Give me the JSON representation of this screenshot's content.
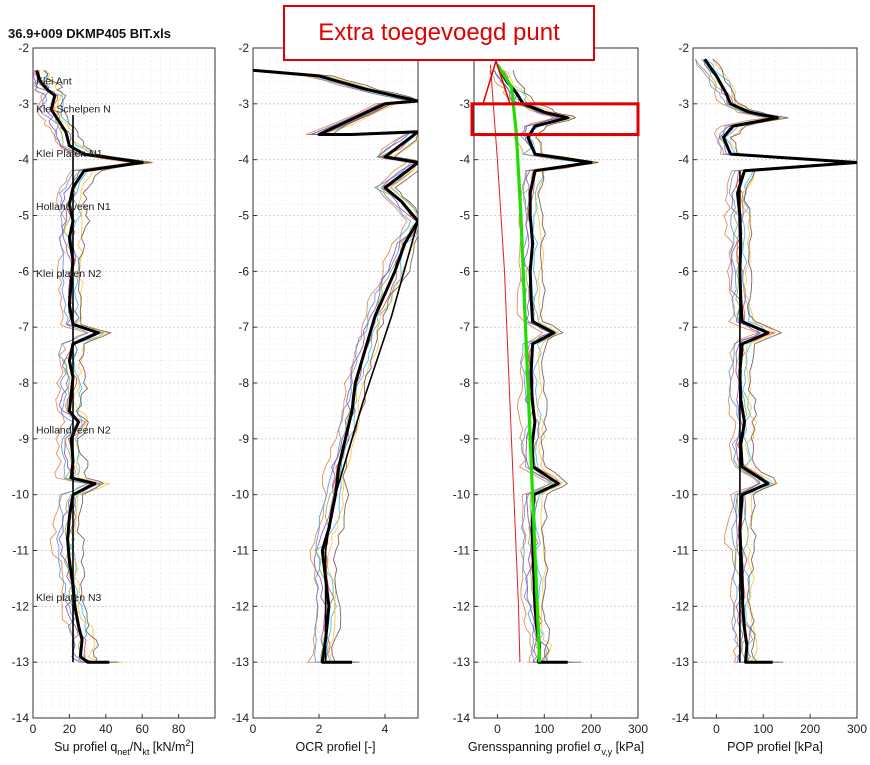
{
  "figure_title": "36.9+009 DKMP405 BIT.xls",
  "annotation": {
    "text": "Extra toegevoegd punt",
    "color": "#e00000"
  },
  "chart_data": [
    {
      "type": "line",
      "xlabel": "Su profiel q_net/N_kt [kN/m²]",
      "xlabel_parts": {
        "pre": "Su profiel q",
        "sub1": "net",
        "mid": "/N",
        "sub2": "kt",
        "post": " [kN/m",
        "sup": "2",
        "end": "]"
      },
      "xlim": [
        0,
        100
      ],
      "xticks": [
        0,
        20,
        40,
        60,
        80
      ],
      "ylim": [
        -14,
        -2
      ],
      "yticks": [
        -2,
        -3,
        -4,
        -5,
        -6,
        -7,
        -8,
        -9,
        -10,
        -11,
        -12,
        -13,
        -14
      ],
      "grid": true,
      "layer_labels": [
        {
          "text": "Klei Ant",
          "depth": -2.6
        },
        {
          "text": "Klei Schelpen N",
          "depth": -3.1
        },
        {
          "text": "Klei Platen N1",
          "depth": -3.9
        },
        {
          "text": "Hollandveen N1",
          "depth": -4.85
        },
        {
          "text": "Klei platen N2",
          "depth": -6.05
        },
        {
          "text": "Hollandveen N2",
          "depth": -8.85
        },
        {
          "text": "Klei platen N3",
          "depth": -11.85
        }
      ],
      "series": [
        {
          "role": "mean",
          "color": "#000000",
          "points": [
            [
              2,
              -2.4
            ],
            [
              4,
              -2.6
            ],
            [
              8,
              -2.75
            ],
            [
              12,
              -2.85
            ],
            [
              10,
              -3.1
            ],
            [
              14,
              -3.3
            ],
            [
              18,
              -3.5
            ],
            [
              20,
              -3.75
            ],
            [
              28,
              -3.9
            ],
            [
              60,
              -4.05
            ],
            [
              28,
              -4.2
            ],
            [
              22,
              -4.5
            ],
            [
              20,
              -4.8
            ],
            [
              22,
              -5.1
            ],
            [
              20,
              -5.4
            ],
            [
              22,
              -5.8
            ],
            [
              21,
              -6.2
            ],
            [
              20,
              -6.6
            ],
            [
              22,
              -6.95
            ],
            [
              36,
              -7.1
            ],
            [
              22,
              -7.3
            ],
            [
              20,
              -7.6
            ],
            [
              22,
              -7.9
            ],
            [
              21,
              -8.2
            ],
            [
              20,
              -8.5
            ],
            [
              25,
              -8.7
            ],
            [
              21,
              -9.0
            ],
            [
              22,
              -9.4
            ],
            [
              21,
              -9.7
            ],
            [
              34,
              -9.8
            ],
            [
              22,
              -10.0
            ],
            [
              20,
              -10.4
            ],
            [
              19,
              -10.8
            ],
            [
              20,
              -11.2
            ],
            [
              22,
              -11.6
            ],
            [
              23,
              -12.0
            ],
            [
              25,
              -12.35
            ],
            [
              27,
              -12.6
            ],
            [
              26,
              -12.9
            ],
            [
              30,
              -13.0
            ],
            [
              42,
              -13.0
            ]
          ]
        },
        {
          "role": "trend",
          "color": "#000000",
          "points": [
            [
              22,
              -3.2
            ],
            [
              22,
              -13.0
            ]
          ]
        }
      ]
    },
    {
      "type": "line",
      "xlabel": "OCR profiel [-]",
      "xlim": [
        0,
        5
      ],
      "xticks": [
        0,
        2,
        4
      ],
      "ylim": [
        -14,
        -2
      ],
      "yticks": [
        -2,
        -3,
        -4,
        -5,
        -6,
        -7,
        -8,
        -9,
        -10,
        -11,
        -12,
        -13,
        -14
      ],
      "grid": true,
      "series": [
        {
          "role": "mean",
          "color": "#000000",
          "points": [
            [
              0,
              -2.4
            ],
            [
              2,
              -2.5
            ],
            [
              3.5,
              -2.75
            ],
            [
              5,
              -2.95
            ],
            [
              4,
              -3.0
            ],
            [
              2,
              -3.55
            ],
            [
              3,
              -3.55
            ],
            [
              5,
              -3.5
            ],
            [
              4,
              -3.95
            ],
            [
              5,
              -4.05
            ],
            [
              4,
              -4.5
            ],
            [
              4.5,
              -4.75
            ],
            [
              5,
              -5.1
            ],
            [
              4.6,
              -5.5
            ],
            [
              4.3,
              -6.0
            ],
            [
              4.0,
              -6.4
            ],
            [
              3.7,
              -6.8
            ],
            [
              3.5,
              -7.2
            ],
            [
              3.3,
              -7.6
            ],
            [
              3.1,
              -8.0
            ],
            [
              3.0,
              -8.5
            ],
            [
              2.8,
              -9.0
            ],
            [
              2.6,
              -9.5
            ],
            [
              2.5,
              -10.0
            ],
            [
              2.3,
              -10.6
            ],
            [
              2.1,
              -11.0
            ],
            [
              2.2,
              -11.5
            ],
            [
              2.3,
              -12.0
            ],
            [
              2.2,
              -12.6
            ],
            [
              2.1,
              -13.0
            ],
            [
              3.0,
              -13.0
            ]
          ]
        },
        {
          "role": "trend",
          "color": "#000000",
          "points": [
            [
              5,
              -5.1
            ],
            [
              4.2,
              -6.8
            ],
            [
              3.3,
              -8.4
            ],
            [
              2.4,
              -10.2
            ],
            [
              2.2,
              -11.0
            ],
            [
              2.2,
              -13.0
            ]
          ]
        }
      ]
    },
    {
      "type": "line",
      "xlabel": "Grensspanning profiel σ_v,y [kPa]",
      "xlabel_parts": {
        "pre": "Grensspanning profiel σ",
        "sub1": "v,y",
        "post": " [kPa]"
      },
      "xlim": [
        -50,
        300
      ],
      "xticks": [
        0,
        100,
        200,
        300
      ],
      "ylim": [
        -14,
        -2
      ],
      "yticks": [
        -2,
        -3,
        -4,
        -5,
        -6,
        -7,
        -8,
        -9,
        -10,
        -11,
        -12,
        -13,
        -14
      ],
      "grid": true,
      "series": [
        {
          "role": "mean",
          "color": "#000000",
          "points": [
            [
              5,
              -2.4
            ],
            [
              20,
              -2.6
            ],
            [
              40,
              -2.8
            ],
            [
              55,
              -3.0
            ],
            [
              100,
              -3.15
            ],
            [
              150,
              -3.25
            ],
            [
              80,
              -3.4
            ],
            [
              65,
              -3.6
            ],
            [
              80,
              -3.9
            ],
            [
              200,
              -4.05
            ],
            [
              80,
              -4.2
            ],
            [
              70,
              -4.6
            ],
            [
              70,
              -5.0
            ],
            [
              75,
              -5.5
            ],
            [
              70,
              -6.0
            ],
            [
              72,
              -6.5
            ],
            [
              75,
              -6.9
            ],
            [
              120,
              -7.1
            ],
            [
              75,
              -7.3
            ],
            [
              72,
              -7.8
            ],
            [
              74,
              -8.3
            ],
            [
              80,
              -8.7
            ],
            [
              74,
              -9.1
            ],
            [
              76,
              -9.5
            ],
            [
              130,
              -9.8
            ],
            [
              78,
              -10.0
            ],
            [
              74,
              -10.6
            ],
            [
              76,
              -11.0
            ],
            [
              78,
              -11.5
            ],
            [
              80,
              -12.0
            ],
            [
              84,
              -12.4
            ],
            [
              90,
              -12.7
            ],
            [
              88,
              -13.0
            ],
            [
              150,
              -13.0
            ]
          ]
        },
        {
          "role": "yield-trend",
          "color": "#22dd00",
          "points": [
            [
              0,
              -2.3
            ],
            [
              30,
              -2.7
            ],
            [
              40,
              -3.5
            ],
            [
              50,
              -5.0
            ],
            [
              60,
              -7.0
            ],
            [
              70,
              -9.0
            ],
            [
              80,
              -11.0
            ],
            [
              90,
              -13.0
            ]
          ]
        },
        {
          "role": "vertical-stress",
          "color": "#dd2222",
          "points": [
            [
              -15,
              -2.3
            ],
            [
              0,
              -4.0
            ],
            [
              15,
              -6.0
            ],
            [
              25,
              -8.0
            ],
            [
              35,
              -10.0
            ],
            [
              45,
              -12.0
            ],
            [
              48,
              -13.0
            ]
          ]
        }
      ],
      "highlight": {
        "depth_range": [
          -3.0,
          -3.55
        ],
        "color": "#e00000"
      }
    },
    {
      "type": "line",
      "xlabel": "POP profiel [kPa]",
      "xlim": [
        -50,
        300
      ],
      "xticks": [
        0,
        100,
        200,
        300
      ],
      "ylim": [
        -14,
        -2
      ],
      "yticks": [
        -2,
        -3,
        -4,
        -5,
        -6,
        -7,
        -8,
        -9,
        -10,
        -11,
        -12,
        -13,
        -14
      ],
      "grid": true,
      "series": [
        {
          "role": "mean",
          "color": "#000000",
          "points": [
            [
              -25,
              -2.2
            ],
            [
              0,
              -2.5
            ],
            [
              20,
              -2.8
            ],
            [
              30,
              -3.0
            ],
            [
              70,
              -3.15
            ],
            [
              130,
              -3.25
            ],
            [
              35,
              -3.4
            ],
            [
              15,
              -3.6
            ],
            [
              30,
              -3.9
            ],
            [
              300,
              -4.05
            ],
            [
              60,
              -4.2
            ],
            [
              45,
              -4.6
            ],
            [
              50,
              -5.0
            ],
            [
              52,
              -5.5
            ],
            [
              50,
              -6.0
            ],
            [
              52,
              -6.5
            ],
            [
              55,
              -6.9
            ],
            [
              110,
              -7.1
            ],
            [
              55,
              -7.3
            ],
            [
              50,
              -7.8
            ],
            [
              52,
              -8.3
            ],
            [
              60,
              -8.7
            ],
            [
              52,
              -9.1
            ],
            [
              55,
              -9.5
            ],
            [
              110,
              -9.8
            ],
            [
              55,
              -10.0
            ],
            [
              50,
              -10.6
            ],
            [
              52,
              -11.0
            ],
            [
              55,
              -11.5
            ],
            [
              56,
              -12.0
            ],
            [
              60,
              -12.4
            ],
            [
              65,
              -12.7
            ],
            [
              62,
              -13.0
            ],
            [
              120,
              -13.0
            ]
          ]
        },
        {
          "role": "trend",
          "color": "#000000",
          "points": [
            [
              50,
              -4.2
            ],
            [
              50,
              -13.0
            ]
          ]
        }
      ]
    }
  ]
}
